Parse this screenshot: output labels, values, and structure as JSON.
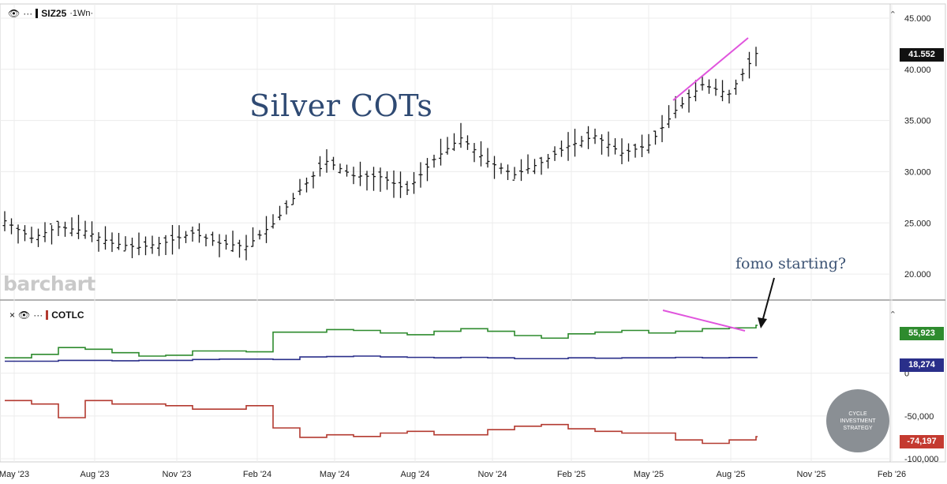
{
  "header_top": {
    "symbol": "SIZ25",
    "timeframe": "·1Wn·",
    "dots": "···"
  },
  "header_bottom": {
    "indicator": "COTLC",
    "dots": "···",
    "close": "×"
  },
  "annotations": {
    "title": "Silver COTs",
    "fomo": "fomo starting?"
  },
  "watermark": "barchart",
  "logo": {
    "line1": "CYCLE",
    "line2": "INVESTMENT",
    "line3": "STRATEGY"
  },
  "colors": {
    "price": "#1a1a1a",
    "trend_line": "#e055dd",
    "green": "#2e8b2e",
    "blue": "#2a2f8a",
    "red": "#b33a30",
    "grid": "#ececec",
    "tag_price": "#111111"
  },
  "chart_data": [
    {
      "type": "ohlc",
      "title": "",
      "ylim": [
        18,
        46
      ],
      "y_ticks": [
        "45.000",
        "40.000",
        "35.000",
        "30.000",
        "25.000",
        "20.000"
      ],
      "last_value": "41.552",
      "x_ticks": [
        "May '23",
        "Aug '23",
        "Nov '23",
        "Feb '24",
        "May '24",
        "Aug '24",
        "Nov '24",
        "Feb '25",
        "May '25",
        "Aug '25",
        "Nov '25",
        "Feb '26"
      ],
      "close_points": [
        [
          "May '23",
          25.2
        ],
        [
          "Jun '23",
          23.5
        ],
        [
          "Jul '23",
          24.6
        ],
        [
          "Aug '23",
          24.2
        ],
        [
          "Sep '23",
          23.0
        ],
        [
          "Oct '23",
          22.6
        ],
        [
          "Nov '23",
          23.1
        ],
        [
          "Dec '23",
          24.0
        ],
        [
          "Jan '24",
          23.0
        ],
        [
          "Feb '24",
          22.7
        ],
        [
          "Mar '24",
          24.9
        ],
        [
          "Apr '24",
          28.2
        ],
        [
          "May '24",
          31.0
        ],
        [
          "Jun '24",
          29.6
        ],
        [
          "Jul '24",
          29.5
        ],
        [
          "Aug '24",
          28.2
        ],
        [
          "Sep '24",
          31.2
        ],
        [
          "Oct '24",
          33.3
        ],
        [
          "Nov '24",
          31.0
        ],
        [
          "Dec '24",
          29.7
        ],
        [
          "Jan '25",
          30.9
        ],
        [
          "Feb '25",
          32.5
        ],
        [
          "Mar '25",
          33.5
        ],
        [
          "Apr '25",
          31.8
        ],
        [
          "May '25",
          32.6
        ],
        [
          "Jun '25",
          36.0
        ],
        [
          "Jul '25",
          38.5
        ],
        [
          "Aug '25",
          37.6
        ],
        [
          "Sep '25",
          41.552
        ]
      ]
    },
    {
      "type": "line",
      "title": "COTLC",
      "ylim": [
        -100000,
        80000
      ],
      "y_ticks": [
        "0",
        "-50,000",
        "-100,000"
      ],
      "series": [
        {
          "name": "",
          "color": "#2e8b2e",
          "last": "55,923",
          "values": [
            18000,
            22000,
            30000,
            28000,
            24000,
            20000,
            21000,
            26000,
            26000,
            25000,
            48000,
            48000,
            51000,
            50000,
            47000,
            45000,
            49000,
            52000,
            49000,
            44000,
            41000,
            46000,
            48000,
            50000,
            47000,
            49000,
            52000,
            53000,
            55923
          ]
        },
        {
          "name": "",
          "color": "#2a2f8a",
          "last": "18,274",
          "values": [
            14000,
            14000,
            15000,
            15000,
            14500,
            15000,
            15000,
            16000,
            16500,
            16500,
            16000,
            19000,
            19500,
            20000,
            19000,
            18500,
            18000,
            18500,
            18000,
            17000,
            17000,
            18000,
            17500,
            18000,
            18000,
            18500,
            18000,
            18300,
            18274
          ]
        },
        {
          "name": "",
          "color": "#b33a30",
          "last": "-74,197",
          "values": [
            -32000,
            -36000,
            -52000,
            -32000,
            -36000,
            -36000,
            -38000,
            -42000,
            -42000,
            -38000,
            -64000,
            -75000,
            -72000,
            -74000,
            -70000,
            -68000,
            -72000,
            -72000,
            -66000,
            -62000,
            -60000,
            -65000,
            -68000,
            -70000,
            -70000,
            -78000,
            -82000,
            -78000,
            -74197
          ]
        }
      ]
    }
  ]
}
